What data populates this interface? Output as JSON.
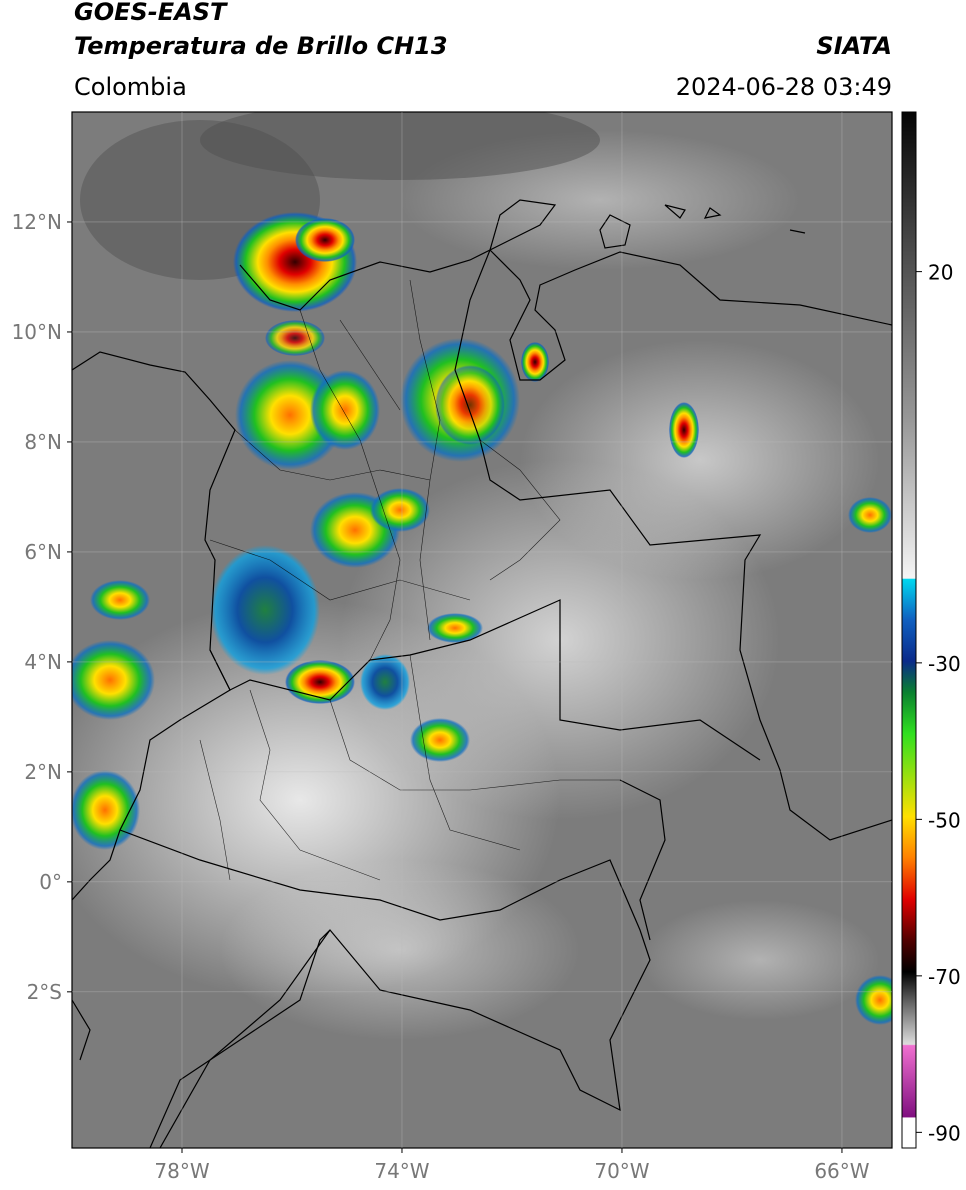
{
  "header": {
    "title": "GOES-EAST",
    "subtitle": "Temperatura de Brillo CH13",
    "source": "SIATA",
    "region": "Colombia",
    "datetime": "2024-06-28 03:49"
  },
  "map": {
    "xlim": [
      -80,
      -65.09
    ],
    "ylim": [
      -4.84,
      14
    ],
    "xticks": [
      {
        "value": -78,
        "label": "78°W"
      },
      {
        "value": -74,
        "label": "74°W"
      },
      {
        "value": -70,
        "label": "70°W"
      },
      {
        "value": -66,
        "label": "66°W"
      }
    ],
    "yticks": [
      {
        "value": 12,
        "label": "12°N"
      },
      {
        "value": 10,
        "label": "10°N"
      },
      {
        "value": 8,
        "label": "8°N"
      },
      {
        "value": 6,
        "label": "6°N"
      },
      {
        "value": 4,
        "label": "4°N"
      },
      {
        "value": 2,
        "label": "2°N"
      },
      {
        "value": 0,
        "label": "0°"
      },
      {
        "value": -2,
        "label": "2°S"
      }
    ],
    "grid": true
  },
  "colorbar": {
    "lim": [
      40.4,
      -92
    ],
    "ticks": [
      20,
      -30,
      -50,
      -70,
      -90
    ]
  }
}
